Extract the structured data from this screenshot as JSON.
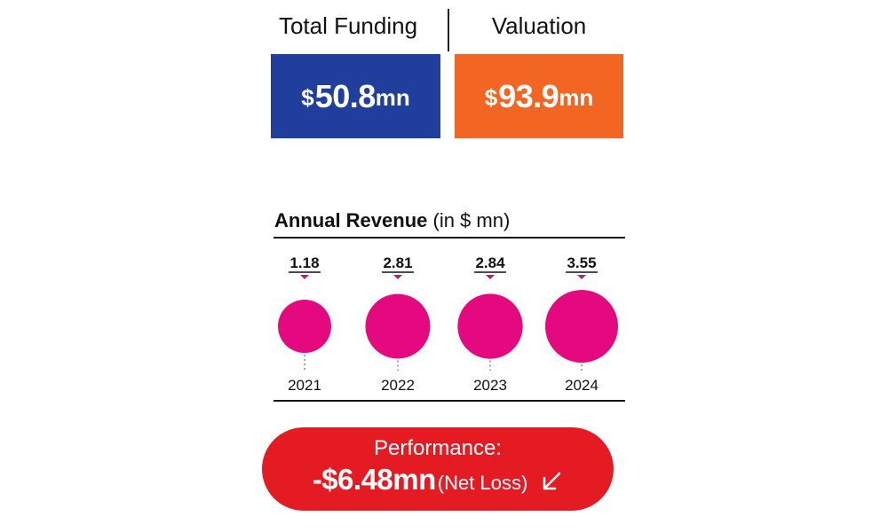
{
  "metrics": {
    "funding": {
      "label": "Total Funding",
      "symbol": "$",
      "value": "50.8",
      "unit": "mn",
      "color": "#203e9c"
    },
    "valuation": {
      "label": "Valuation",
      "symbol": "$",
      "value": "93.9",
      "unit": "mn",
      "color": "#f26522"
    }
  },
  "chart_data": {
    "type": "bubble",
    "title": "Annual Revenue",
    "subtitle": "(in $ mn)",
    "categories": [
      "2021",
      "2022",
      "2023",
      "2024"
    ],
    "values": [
      1.18,
      2.81,
      2.84,
      3.55
    ],
    "value_labels": [
      "1.18",
      "2.81",
      "2.84",
      "3.55"
    ],
    "bubble_color": "#e5097f",
    "marker_color": "#9b2a7c"
  },
  "performance": {
    "label": "Performance:",
    "value": "-$6.48mn",
    "note": "(Net Loss)",
    "icon": "arrow-down-left-icon",
    "color": "#e41b23"
  }
}
